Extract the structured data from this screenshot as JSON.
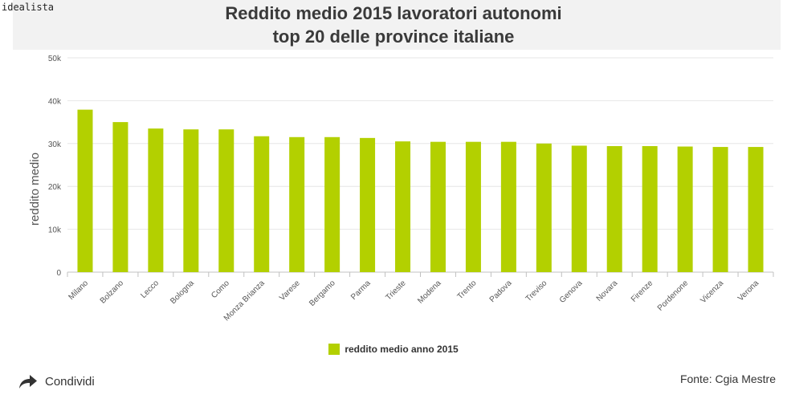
{
  "brand": "idealista",
  "title_lines": [
    "Reddito medio 2015 lavoratori autonomi",
    "top 20 delle province italiane"
  ],
  "share_label": "Condividi",
  "source_label": "Fonte: Cgia Mestre",
  "colors": {
    "bar": "#b3d000",
    "header_bg": "#f2f2f2",
    "grid": "#e6e6e6"
  },
  "chart_data": {
    "type": "bar",
    "title": "Reddito medio 2015 lavoratori autonomi top 20 delle province italiane",
    "ylabel": "reddito medio",
    "xlabel": "",
    "ylim": [
      0,
      50000
    ],
    "yticks": [
      0,
      10000,
      20000,
      30000,
      40000,
      50000
    ],
    "ytick_labels": [
      "0",
      "10k",
      "20k",
      "30k",
      "40k",
      "50k"
    ],
    "grid": true,
    "legend_position": "bottom",
    "categories": [
      "Milano",
      "Bolzano",
      "Lecco",
      "Bologna",
      "Como",
      "Monza Brianza",
      "Varese",
      "Bergamo",
      "Parma",
      "Trieste",
      "Modena",
      "Trento",
      "Padova",
      "Treviso",
      "Genova",
      "Novara",
      "Firenze",
      "Pordenone",
      "Vicenza",
      "Verona"
    ],
    "series": [
      {
        "name": "reddito medio anno 2015",
        "values": [
          37900,
          35000,
          33500,
          33300,
          33300,
          31700,
          31500,
          31500,
          31300,
          30500,
          30400,
          30400,
          30400,
          30000,
          29500,
          29400,
          29400,
          29300,
          29200,
          29200
        ]
      }
    ]
  }
}
